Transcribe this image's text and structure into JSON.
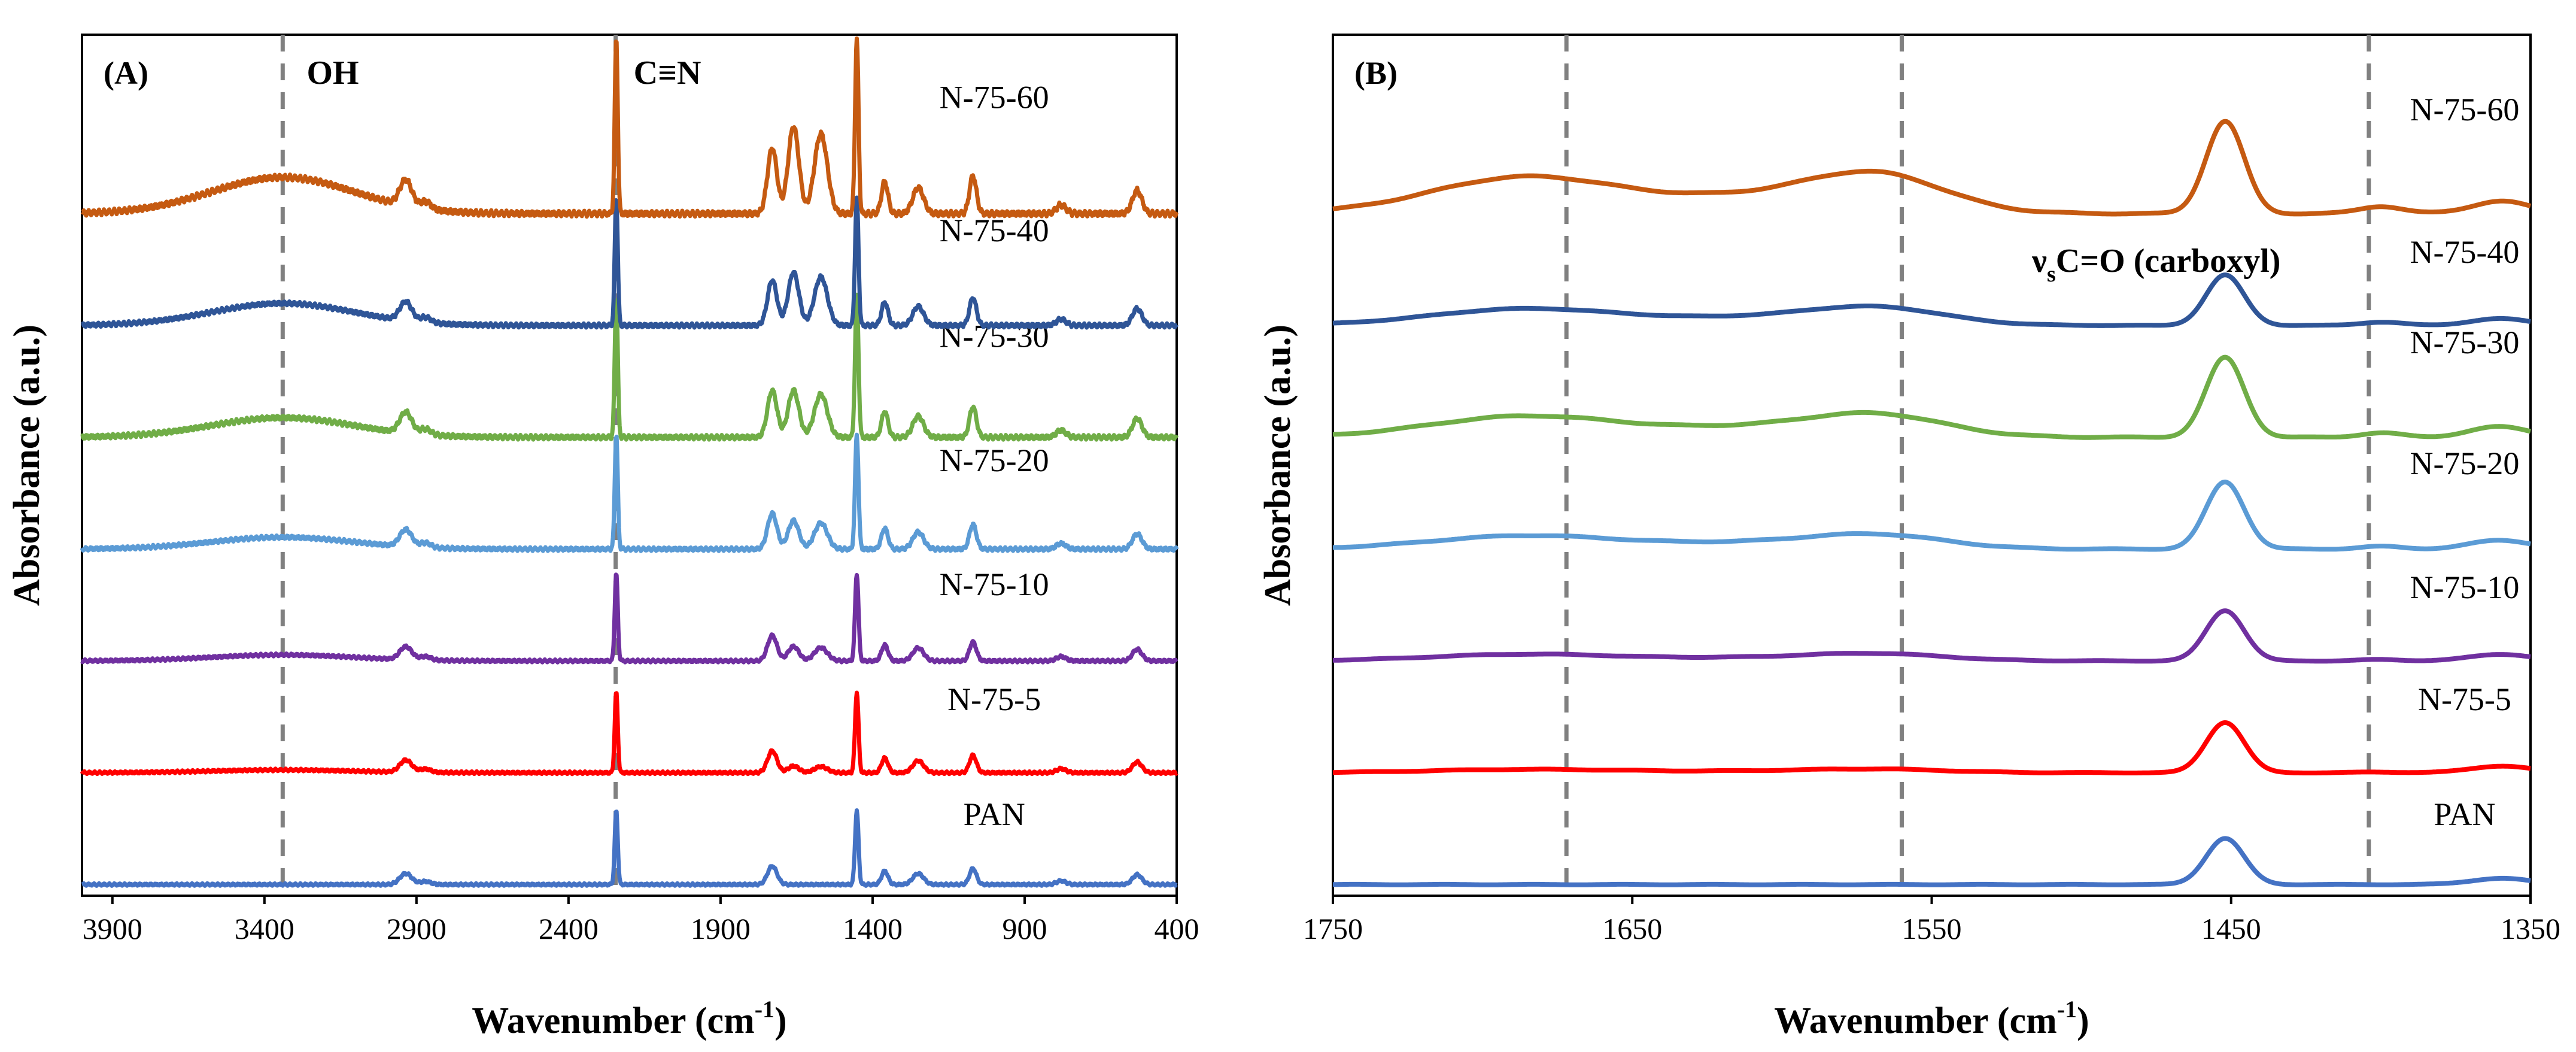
{
  "chart_data": [
    {
      "type": "line",
      "panel_label": "(A)",
      "xlabel": "Wavenumber (cm",
      "xlabel_sup": "-1",
      "xlabel_close": ")",
      "ylabel": "Absorbance (a.u.)",
      "xlim": [
        4000,
        400
      ],
      "x_reversed": true,
      "ylim": [
        0,
        7.7
      ],
      "y_ticks_shown": false,
      "x_ticks": [
        3900,
        3400,
        2900,
        2400,
        1900,
        1400,
        900,
        400
      ],
      "grid": false,
      "annotations": [
        {
          "text": "OH",
          "x": 3320
        },
        {
          "text": "C≡N",
          "x": 2245
        }
      ],
      "vlines": [
        3340,
        2245
      ],
      "series": [
        {
          "name": "PAN",
          "color": "#4472C4",
          "offset": 0.0,
          "scale": 0.55,
          "label_x": 1000,
          "label_y": 0.33
        },
        {
          "name": "N-75-5",
          "color": "#FF0000",
          "offset": 1.0,
          "scale": 0.6,
          "label_x": 1000,
          "label_y": 1.33
        },
        {
          "name": "N-75-10",
          "color": "#7030A0",
          "offset": 2.0,
          "scale": 0.65,
          "label_x": 1000,
          "label_y": 2.33
        },
        {
          "name": "N-75-20",
          "color": "#5B9BD5",
          "offset": 3.0,
          "scale": 0.85,
          "label_x": 1000,
          "label_y": 3.33
        },
        {
          "name": "N-75-30",
          "color": "#70AD47",
          "offset": 4.0,
          "scale": 1.05,
          "label_x": 1000,
          "label_y": 4.33
        },
        {
          "name": "N-75-40",
          "color": "#2F5597",
          "offset": 5.0,
          "scale": 0.95,
          "label_x": 1000,
          "label_y": 5.33
        },
        {
          "name": "N-75-60",
          "color": "#C55A11",
          "offset": 6.0,
          "scale": 1.3,
          "label_x": 1000,
          "label_y": 6.33
        }
      ]
    },
    {
      "type": "line",
      "panel_label": "(B)",
      "xlabel": "Wavenumber (cm",
      "xlabel_sup": "-1",
      "xlabel_close": ")",
      "ylabel": "Absorbance (a.u.)",
      "xlim": [
        1750,
        1350
      ],
      "x_reversed": true,
      "ylim": [
        0,
        7.7
      ],
      "y_ticks_shown": false,
      "x_ticks": [
        1750,
        1650,
        1550,
        1450,
        1350
      ],
      "grid": false,
      "annotations": [
        {
          "text": "ν",
          "sub": "s",
          "rest": "C=O (carboxyl)",
          "x": 1475
        }
      ],
      "vlines": [
        1672,
        1560,
        1404
      ],
      "series": [
        {
          "name": "PAN",
          "color": "#4472C4",
          "offset": 0.0,
          "scale": 0.55,
          "label_x": 1372,
          "label_y": 0.33
        },
        {
          "name": "N-75-5",
          "color": "#FF0000",
          "offset": 1.0,
          "scale": 0.6,
          "label_x": 1372,
          "label_y": 1.33
        },
        {
          "name": "N-75-10",
          "color": "#7030A0",
          "offset": 2.0,
          "scale": 0.6,
          "label_x": 1372,
          "label_y": 2.33
        },
        {
          "name": "N-75-20",
          "color": "#5B9BD5",
          "offset": 3.0,
          "scale": 0.8,
          "label_x": 1372,
          "label_y": 3.33
        },
        {
          "name": "N-75-30",
          "color": "#70AD47",
          "offset": 4.0,
          "scale": 0.95,
          "label_x": 1372,
          "label_y": 4.33
        },
        {
          "name": "N-75-40",
          "color": "#2F5597",
          "offset": 5.0,
          "scale": 0.6,
          "label_x": 1372,
          "label_y": 5.33
        },
        {
          "name": "N-75-60",
          "color": "#C55A11",
          "offset": 6.0,
          "scale": 1.1,
          "label_x": 1372,
          "label_y": 6.33
        }
      ]
    }
  ]
}
